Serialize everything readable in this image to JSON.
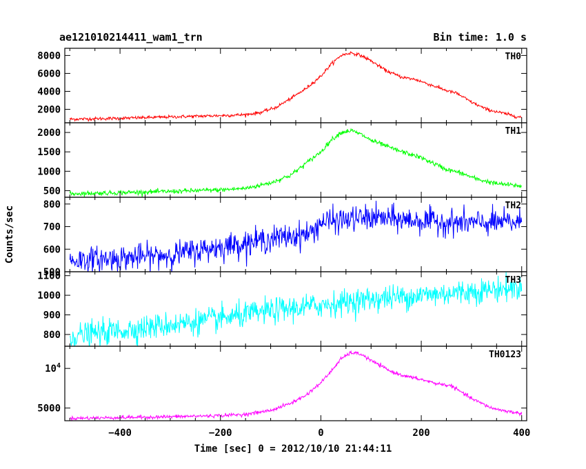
{
  "chart_data": {
    "type": "line",
    "title": "ae121010214411_wam1_trn",
    "subtitle": "Bin time: 1.0 s",
    "xlabel": "Time [sec] 0 = 2012/10/10 21:44:11",
    "ylabel": "Counts/sec",
    "xlim": [
      -510,
      410
    ],
    "x_ticks": [
      -400,
      -200,
      0,
      200,
      400
    ],
    "x_tick_labels": [
      "−400",
      "−200",
      "0",
      "200",
      "400"
    ],
    "bin_time_s": 1.0,
    "panels": [
      {
        "name": "TH0",
        "color": "#ff0000",
        "ylim": [
          500,
          8800
        ],
        "y_ticks": [
          2000,
          4000,
          6000,
          8000
        ],
        "y_tick_labels": [
          "2000",
          "4000",
          "6000",
          "8000"
        ],
        "noise": 90,
        "values": [
          [
            -500,
            900
          ],
          [
            -400,
            1000
          ],
          [
            -300,
            1150
          ],
          [
            -200,
            1300
          ],
          [
            -150,
            1400
          ],
          [
            -120,
            1650
          ],
          [
            -90,
            2200
          ],
          [
            -60,
            3200
          ],
          [
            -30,
            4300
          ],
          [
            0,
            5700
          ],
          [
            20,
            7000
          ],
          [
            40,
            8000
          ],
          [
            60,
            8300
          ],
          [
            80,
            8000
          ],
          [
            100,
            7400
          ],
          [
            130,
            6300
          ],
          [
            160,
            5600
          ],
          [
            190,
            5300
          ],
          [
            220,
            4700
          ],
          [
            250,
            4100
          ],
          [
            270,
            3800
          ],
          [
            300,
            2800
          ],
          [
            330,
            2000
          ],
          [
            360,
            1600
          ],
          [
            390,
            1200
          ],
          [
            400,
            1100
          ]
        ]
      },
      {
        "name": "TH1",
        "color": "#00ff00",
        "ylim": [
          330,
          2250
        ],
        "y_ticks": [
          500,
          1000,
          1500,
          2000
        ],
        "y_tick_labels": [
          "500",
          "1000",
          "1500",
          "2000"
        ],
        "noise": 30,
        "values": [
          [
            -500,
            420
          ],
          [
            -400,
            450
          ],
          [
            -300,
            480
          ],
          [
            -200,
            520
          ],
          [
            -150,
            560
          ],
          [
            -100,
            700
          ],
          [
            -60,
            900
          ],
          [
            -30,
            1200
          ],
          [
            0,
            1500
          ],
          [
            20,
            1800
          ],
          [
            40,
            2000
          ],
          [
            60,
            2050
          ],
          [
            80,
            1950
          ],
          [
            100,
            1800
          ],
          [
            150,
            1550
          ],
          [
            200,
            1350
          ],
          [
            250,
            1050
          ],
          [
            280,
            950
          ],
          [
            310,
            800
          ],
          [
            350,
            680
          ],
          [
            400,
            620
          ]
        ]
      },
      {
        "name": "TH2",
        "color": "#0000ff",
        "ylim": [
          500,
          830
        ],
        "y_ticks": [
          500,
          600,
          700,
          800
        ],
        "y_tick_labels": [
          "500",
          "600",
          "700",
          "800"
        ],
        "noise": 28,
        "values": [
          [
            -500,
            550
          ],
          [
            -400,
            560
          ],
          [
            -300,
            575
          ],
          [
            -200,
            610
          ],
          [
            -100,
            645
          ],
          [
            -20,
            670
          ],
          [
            0,
            720
          ],
          [
            100,
            740
          ],
          [
            200,
            725
          ],
          [
            300,
            715
          ],
          [
            400,
            720
          ]
        ]
      },
      {
        "name": "TH3",
        "color": "#00ffff",
        "ylim": [
          740,
          1120
        ],
        "y_ticks": [
          800,
          900,
          1000,
          1100
        ],
        "y_tick_labels": [
          "800",
          "900",
          "1000",
          "1100"
        ],
        "noise": 32,
        "values": [
          [
            -500,
            790
          ],
          [
            -400,
            820
          ],
          [
            -300,
            850
          ],
          [
            -200,
            880
          ],
          [
            -100,
            920
          ],
          [
            0,
            950
          ],
          [
            100,
            980
          ],
          [
            200,
            1000
          ],
          [
            300,
            1020
          ],
          [
            400,
            1040
          ]
        ]
      },
      {
        "name": "TH0123",
        "color": "#ff00ff",
        "ylim": [
          3400,
          12800
        ],
        "y_ticks": [
          5000,
          10000
        ],
        "y_tick_labels": [
          "5000",
          "10^4"
        ],
        "noise": 110,
        "values": [
          [
            -500,
            3700
          ],
          [
            -400,
            3800
          ],
          [
            -300,
            3900
          ],
          [
            -200,
            4050
          ],
          [
            -150,
            4200
          ],
          [
            -100,
            4700
          ],
          [
            -60,
            5600
          ],
          [
            -30,
            6600
          ],
          [
            0,
            8200
          ],
          [
            20,
            9600
          ],
          [
            40,
            11200
          ],
          [
            60,
            12000
          ],
          [
            80,
            11800
          ],
          [
            100,
            11000
          ],
          [
            140,
            9600
          ],
          [
            170,
            9000
          ],
          [
            200,
            8600
          ],
          [
            230,
            8100
          ],
          [
            260,
            7800
          ],
          [
            300,
            6200
          ],
          [
            340,
            5000
          ],
          [
            370,
            4600
          ],
          [
            400,
            4300
          ]
        ]
      }
    ]
  }
}
